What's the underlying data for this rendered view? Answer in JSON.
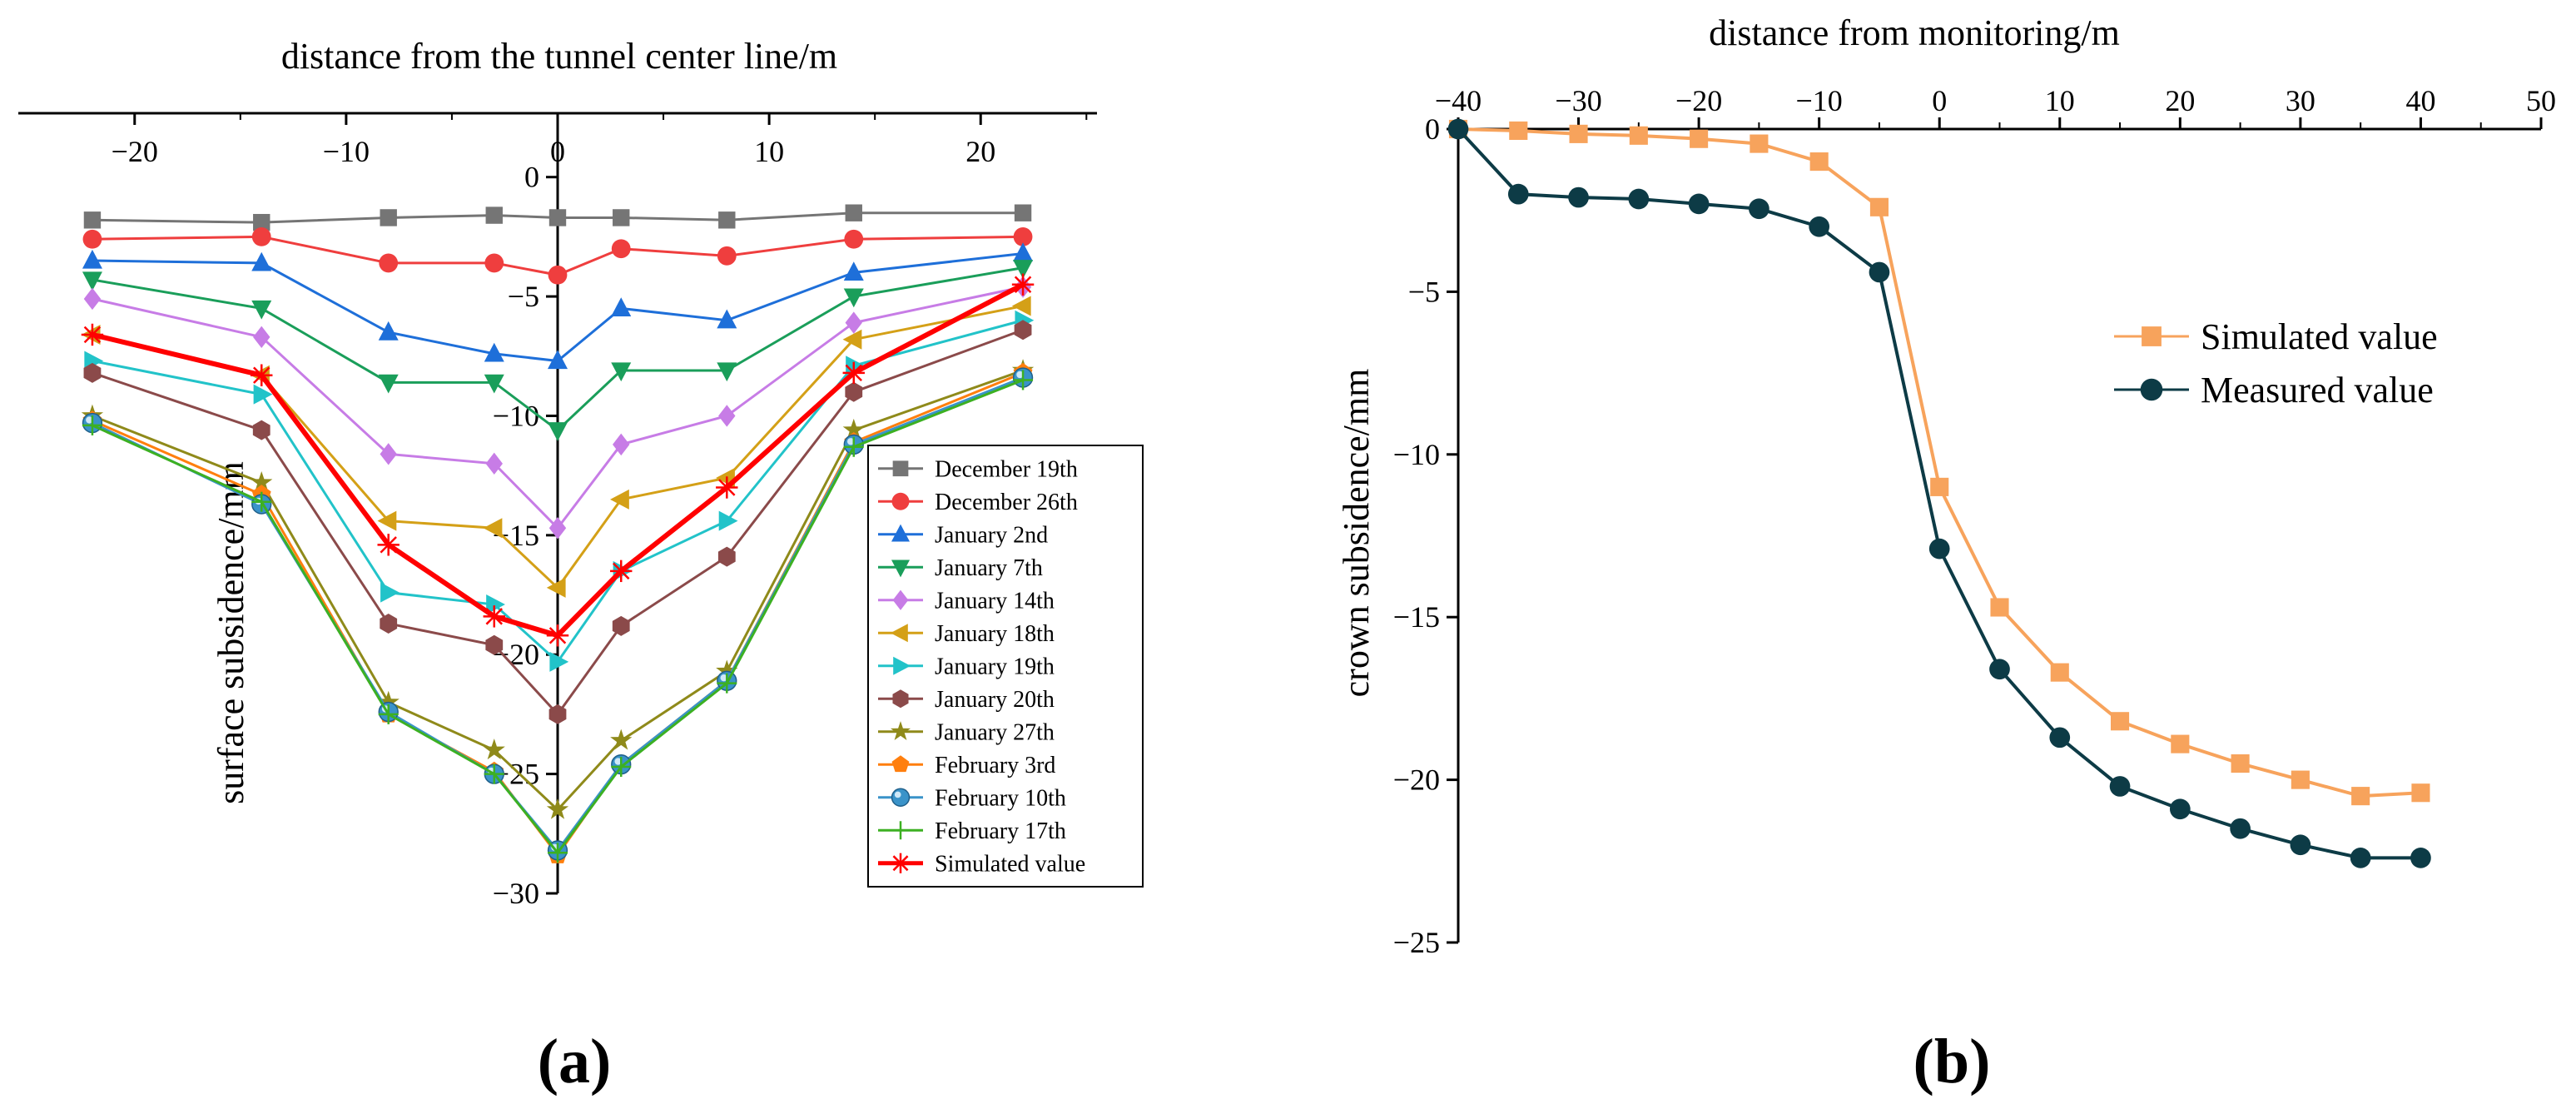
{
  "figure": {
    "label_a": "(a)",
    "label_b": "(b)"
  },
  "chart_data": [
    {
      "id": "a",
      "type": "line",
      "title": "",
      "xlabel": "distance from the tunnel center line/m",
      "ylabel": "surface subsidence/mm",
      "xlim": [
        -25.5,
        25.5
      ],
      "ylim": [
        -30,
        2.5
      ],
      "xticks": [
        -20,
        -10,
        0,
        10,
        20
      ],
      "xtick_labels": [
        "−20",
        "−10",
        "0",
        "10",
        "20"
      ],
      "yticks": [
        0,
        -5,
        -10,
        -15,
        -20,
        -25,
        -30
      ],
      "ytick_labels": [
        "0",
        "−5",
        "−10",
        "−15",
        "−20",
        "−25",
        "−30"
      ],
      "x_axis_position": "top",
      "y_axis_position": "center",
      "grid": false,
      "legend_position": "right-center",
      "x": [
        -22,
        -14,
        -8,
        -3,
        0,
        3,
        8,
        14,
        22
      ],
      "series": [
        {
          "name": "December 19th",
          "color": "#757575",
          "marker": "square",
          "values": [
            -1.8,
            -1.9,
            -1.7,
            -1.6,
            -1.7,
            -1.7,
            -1.8,
            -1.5,
            -1.5
          ]
        },
        {
          "name": "December 26th",
          "color": "#ef3e3e",
          "marker": "circle",
          "values": [
            -2.6,
            -2.5,
            -3.6,
            -3.6,
            -4.1,
            -3.0,
            -3.3,
            -2.6,
            -2.5
          ]
        },
        {
          "name": "January 2nd",
          "color": "#1e6fd9",
          "marker": "triangle-up",
          "values": [
            -3.5,
            -3.6,
            -6.5,
            -7.4,
            -7.7,
            -5.5,
            -6.0,
            -4.0,
            -3.2
          ]
        },
        {
          "name": "January 7th",
          "color": "#1a9e5a",
          "marker": "triangle-down",
          "values": [
            -4.3,
            -5.5,
            -8.6,
            -8.6,
            -10.6,
            -8.1,
            -8.1,
            -5.0,
            -3.8
          ]
        },
        {
          "name": "January 14th",
          "color": "#c77ce6",
          "marker": "diamond",
          "values": [
            -5.1,
            -6.7,
            -11.6,
            -12.0,
            -14.7,
            -11.2,
            -10.0,
            -6.1,
            -4.6
          ]
        },
        {
          "name": "January 18th",
          "color": "#d4a017",
          "marker": "triangle-left",
          "values": [
            -6.6,
            -8.3,
            -14.4,
            -14.7,
            -17.2,
            -13.5,
            -12.6,
            -6.8,
            -5.4
          ]
        },
        {
          "name": "January 19th",
          "color": "#22c3c9",
          "marker": "triangle-right",
          "values": [
            -7.7,
            -9.1,
            -17.4,
            -17.9,
            -20.3,
            -16.5,
            -14.4,
            -7.9,
            -6.0
          ]
        },
        {
          "name": "January 20th",
          "color": "#8b4a4a",
          "marker": "hexagon",
          "values": [
            -8.2,
            -10.6,
            -18.7,
            -19.6,
            -22.5,
            -18.8,
            -15.9,
            -9.0,
            -6.4
          ]
        },
        {
          "name": "January 27th",
          "color": "#8f8a1a",
          "marker": "star",
          "values": [
            -10.0,
            -12.8,
            -22.0,
            -24.0,
            -26.5,
            -23.6,
            -20.7,
            -10.6,
            -8.1
          ]
        },
        {
          "name": "February 3rd",
          "color": "#ff7f0e",
          "marker": "pentagon",
          "values": [
            -10.2,
            -13.3,
            -22.5,
            -24.9,
            -28.4,
            -24.6,
            -21.1,
            -11.1,
            -8.2
          ]
        },
        {
          "name": "February 10th",
          "color": "#3a93c9",
          "marker": "ball",
          "values": [
            -10.3,
            -13.7,
            -22.4,
            -25.0,
            -28.2,
            -24.6,
            -21.1,
            -11.2,
            -8.4
          ]
        },
        {
          "name": "February 17th",
          "color": "#3cb022",
          "marker": "plus",
          "values": [
            -10.4,
            -13.6,
            -22.5,
            -25.0,
            -28.3,
            -24.7,
            -21.2,
            -11.3,
            -8.5
          ]
        },
        {
          "name": "Simulated value",
          "color": "#ff0000",
          "marker": "asterisk",
          "line_width": "thick",
          "values": [
            -6.6,
            -8.3,
            -15.4,
            -18.4,
            -19.2,
            -16.5,
            -13.0,
            -8.2,
            -4.5
          ]
        }
      ]
    },
    {
      "id": "b",
      "type": "line",
      "title": "",
      "xlabel": "distance from monitoring/m",
      "ylabel": "crown subsidence/mm",
      "xlim": [
        -40,
        50
      ],
      "ylim": [
        -25,
        0
      ],
      "xticks": [
        -40,
        -30,
        -20,
        -10,
        0,
        10,
        20,
        30,
        40,
        50
      ],
      "xtick_labels": [
        "−40",
        "−30",
        "−20",
        "−10",
        "0",
        "10",
        "20",
        "30",
        "40",
        "50"
      ],
      "yticks": [
        0,
        -5,
        -10,
        -15,
        -20,
        -25
      ],
      "ytick_labels": [
        "0",
        "−5",
        "−10",
        "−15",
        "−20",
        "−25"
      ],
      "x_axis_position": "top",
      "y_axis_position": "left",
      "grid": false,
      "legend_position": "right-center",
      "series": [
        {
          "name": "Simulated value",
          "color": "#f7a35c",
          "marker": "square",
          "x": [
            -40,
            -35,
            -30,
            -25,
            -20,
            -15,
            -10,
            -5,
            0,
            5,
            10,
            15,
            20,
            25,
            30,
            35,
            40
          ],
          "values": [
            0,
            -0.05,
            -0.15,
            -0.2,
            -0.3,
            -0.45,
            -1.0,
            -2.4,
            -11.0,
            -14.7,
            -16.7,
            -18.2,
            -18.9,
            -19.5,
            -20.0,
            -20.5,
            -20.4
          ]
        },
        {
          "name": "Measured value",
          "color": "#0d3b46",
          "marker": "circle",
          "x": [
            -40,
            -35,
            -30,
            -25,
            -20,
            -15,
            -10,
            -5,
            0,
            5,
            10,
            15,
            20,
            25,
            30,
            35,
            40
          ],
          "values": [
            0,
            -2.0,
            -2.1,
            -2.15,
            -2.3,
            -2.45,
            -3.0,
            -4.4,
            -12.9,
            -16.6,
            -18.7,
            -20.2,
            -20.9,
            -21.5,
            -22.0,
            -22.4,
            -22.4
          ]
        }
      ]
    }
  ]
}
